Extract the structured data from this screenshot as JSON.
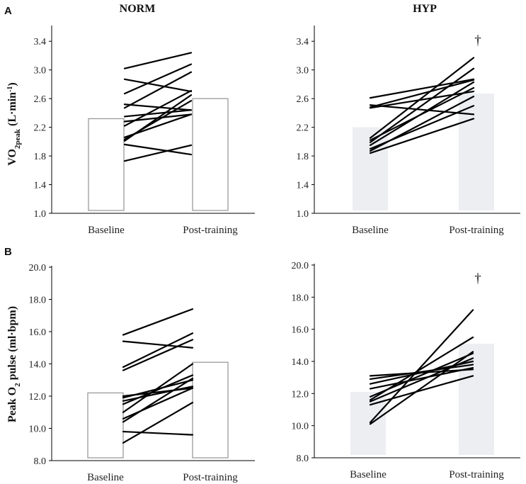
{
  "panel_labels": {
    "a": "A",
    "b": "B"
  },
  "titles": {
    "norm": "NORM",
    "hyp": "HYP"
  },
  "ylabels": {
    "vo2": {
      "pre": "VO",
      "sub": "2peak",
      "post": " (L·min",
      "sup": "-1",
      "end": ")"
    },
    "o2": {
      "pre": "Peak O",
      "sub": "2",
      "post": " pulse (ml·bpm)"
    }
  },
  "significance_marker": "†",
  "colors": {
    "norm_bar_stroke": "#9a9a9a",
    "hyp_bar_fill": "#eceef1",
    "line": "#000000",
    "axis": "#000000"
  },
  "chart_data": [
    {
      "type": "bar",
      "title": "NORM",
      "ylabel": "VO2peak (L·min-1)",
      "categories": [
        "Baseline",
        "Post-training"
      ],
      "ylim": [
        1.0,
        3.6
      ],
      "yticks": [
        "1.0",
        "1.4",
        "1.8",
        "2.2",
        "2.6",
        "3.0",
        "3.4"
      ],
      "bar_values": [
        2.32,
        2.6
      ],
      "bar_style": "outline",
      "individuals": [
        [
          3.02,
          3.24
        ],
        [
          2.87,
          2.7
        ],
        [
          2.67,
          3.08
        ],
        [
          2.52,
          2.44
        ],
        [
          2.47,
          2.97
        ],
        [
          2.35,
          2.44
        ],
        [
          2.28,
          2.38
        ],
        [
          2.22,
          2.71
        ],
        [
          2.06,
          2.38
        ],
        [
          2.03,
          2.57
        ],
        [
          2.01,
          2.65
        ],
        [
          1.96,
          1.82
        ],
        [
          1.73,
          1.95
        ]
      ],
      "significance": ""
    },
    {
      "type": "bar",
      "title": "HYP",
      "ylabel": "VO2peak (L·min-1)",
      "categories": [
        "Baseline",
        "Post-training"
      ],
      "ylim": [
        1.0,
        3.6
      ],
      "yticks": [
        "1.0",
        "1.4",
        "1.8",
        "2.2",
        "2.6",
        "3.0",
        "3.4"
      ],
      "bar_values": [
        2.2,
        2.67
      ],
      "bar_style": "filled",
      "individuals": [
        [
          2.61,
          2.87
        ],
        [
          2.51,
          2.38
        ],
        [
          2.48,
          2.86
        ],
        [
          2.47,
          2.7
        ],
        [
          2.05,
          3.17
        ],
        [
          2.02,
          2.75
        ],
        [
          1.99,
          3.02
        ],
        [
          1.95,
          2.83
        ],
        [
          1.9,
          2.5
        ],
        [
          1.87,
          2.63
        ],
        [
          1.84,
          2.32
        ]
      ],
      "significance": "†"
    },
    {
      "type": "bar",
      "title": "",
      "ylabel": "Peak O2 pulse (ml·bpm)",
      "categories": [
        "Baseline",
        "Post-training"
      ],
      "ylim": [
        8.0,
        20.0
      ],
      "yticks": [
        "8.0",
        "10.0",
        "12.0",
        "14.0",
        "16.0",
        "18.0",
        "20.0"
      ],
      "bar_values": [
        12.2,
        14.1
      ],
      "bar_style": "outline",
      "individuals": [
        [
          15.8,
          17.4
        ],
        [
          15.4,
          15.0
        ],
        [
          13.8,
          15.9
        ],
        [
          13.6,
          15.5
        ],
        [
          12.0,
          12.5
        ],
        [
          11.9,
          13.0
        ],
        [
          11.7,
          12.6
        ],
        [
          11.5,
          13.3
        ],
        [
          11.0,
          14.0
        ],
        [
          10.6,
          12.5
        ],
        [
          10.4,
          13.1
        ],
        [
          9.8,
          9.6
        ],
        [
          9.1,
          11.6
        ]
      ],
      "significance": ""
    },
    {
      "type": "bar",
      "title": "",
      "ylabel": "Peak O2 pulse (ml·bpm)",
      "categories": [
        "Baseline",
        "Post-training"
      ],
      "ylim": [
        8.0,
        20.0
      ],
      "yticks": [
        "8.0",
        "10.0",
        "12.0",
        "14.0",
        "16.0",
        "18.0",
        "20.0"
      ],
      "bar_values": [
        12.1,
        15.1
      ],
      "bar_style": "filled",
      "individuals": [
        [
          13.1,
          13.5
        ],
        [
          12.9,
          13.8
        ],
        [
          12.6,
          14.0
        ],
        [
          12.3,
          13.6
        ],
        [
          11.8,
          14.5
        ],
        [
          11.6,
          15.5
        ],
        [
          11.5,
          14.2
        ],
        [
          11.3,
          13.1
        ],
        [
          10.2,
          17.2
        ],
        [
          10.1,
          14.6
        ]
      ],
      "significance": "†"
    }
  ]
}
